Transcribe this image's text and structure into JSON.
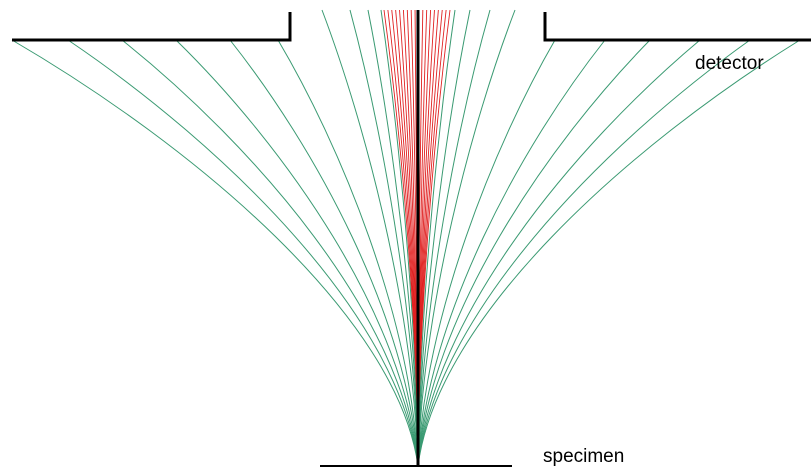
{
  "labels": {
    "detector": "detector",
    "specimen": "specimen"
  },
  "colors": {
    "green_trajectories": "#3a9a72",
    "red_trajectories": "#e02020",
    "structure": "#000000",
    "background": "#ffffff"
  },
  "trajectories": {
    "green_count": 20,
    "red_count": 18
  }
}
